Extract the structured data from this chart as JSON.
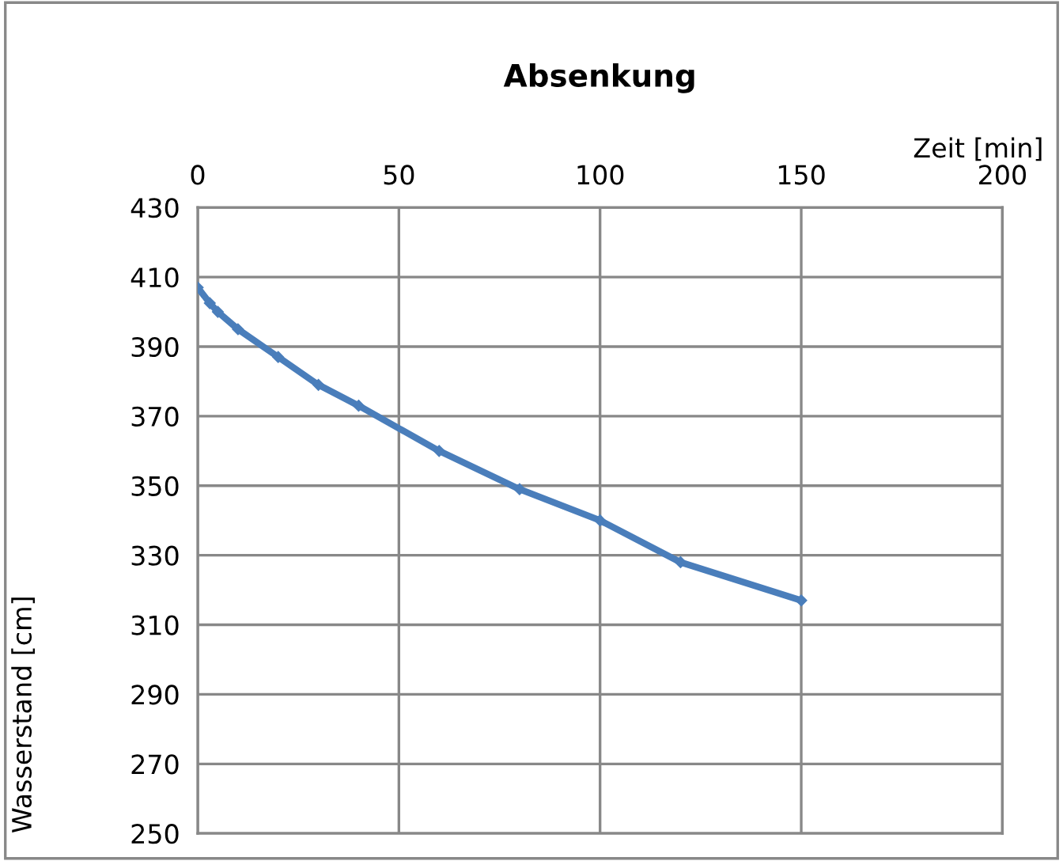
{
  "chart_data": {
    "type": "line",
    "title": "Absenkung",
    "xlabel": "Zeit [min]",
    "ylabel": "Wasserstand [cm]",
    "x": [
      0,
      3,
      5,
      10,
      20,
      30,
      40,
      60,
      80,
      100,
      120,
      150
    ],
    "series": [
      {
        "color": "#4a7ebb",
        "values": [
          407,
          402.5,
          400,
          395,
          387,
          379,
          373,
          360,
          349,
          340,
          328,
          317
        ]
      }
    ],
    "xlim": [
      0,
      200
    ],
    "xticks": [
      0,
      50,
      100,
      150,
      200
    ],
    "ylim": [
      250,
      430
    ],
    "yticks": [
      250,
      270,
      290,
      310,
      330,
      350,
      370,
      390,
      410,
      430
    ],
    "grid": true,
    "marker": "diamond",
    "line_style": "solid"
  }
}
